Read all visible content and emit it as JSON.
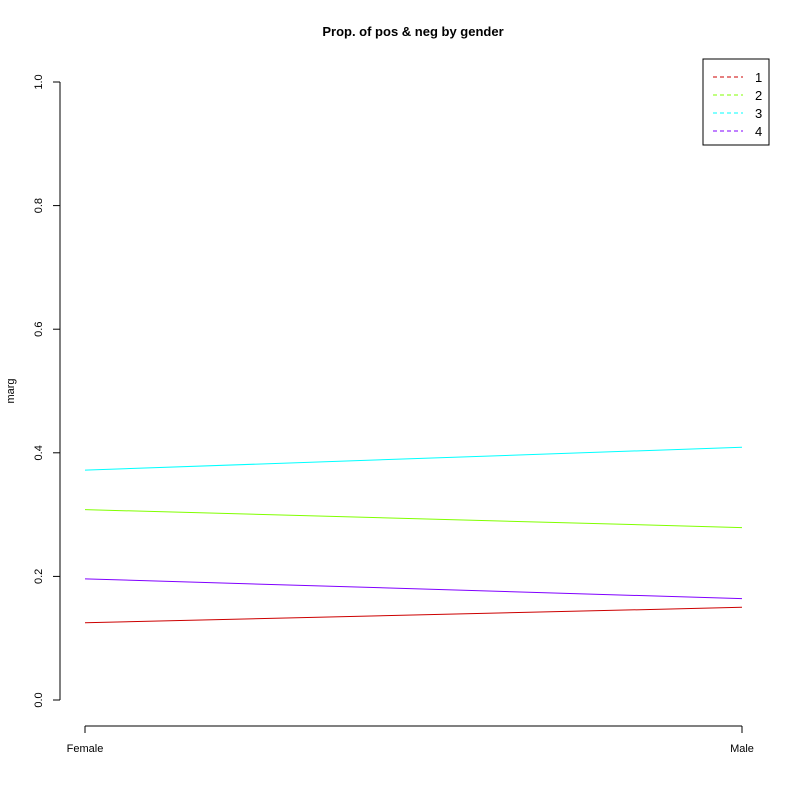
{
  "chart_data": {
    "type": "line",
    "title": "Prop. of pos & neg by gender",
    "xlabel": "",
    "ylabel": "marg",
    "categories": [
      "Female",
      "Male"
    ],
    "ylim": [
      0,
      1
    ],
    "yticks": [
      "0.0",
      "0.2",
      "0.4",
      "0.6",
      "0.8",
      "1.0"
    ],
    "grid": false,
    "legend_position": "top-right",
    "series": [
      {
        "name": "1",
        "color": "#CC0000",
        "values": [
          0.125,
          0.15
        ]
      },
      {
        "name": "2",
        "color": "#80FF00",
        "values": [
          0.308,
          0.279
        ]
      },
      {
        "name": "3",
        "color": "#00FFFF",
        "values": [
          0.372,
          0.409
        ]
      },
      {
        "name": "4",
        "color": "#8000FF",
        "values": [
          0.196,
          0.164
        ]
      }
    ]
  }
}
